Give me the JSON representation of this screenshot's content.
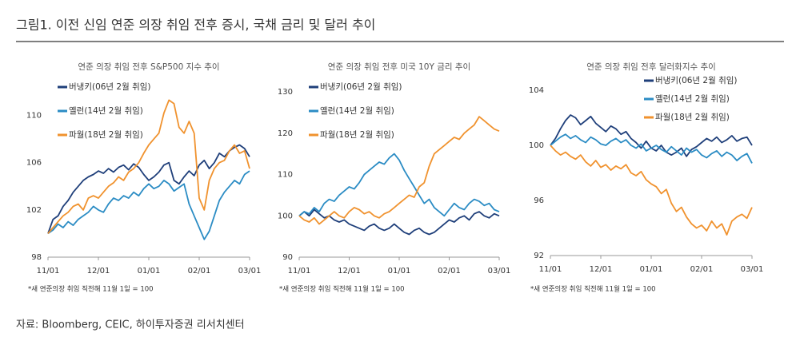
{
  "title": "그림1. 이전 신임 연준 의장 취임 전후 증시, 국채 금리 및 달러 추이",
  "source": "자료: Bloomberg, CEIC, 하이투자증권 리서치센터",
  "chart_data": [
    {
      "type": "line",
      "title": "연준 의장 취임 전후 S&P500 지수 추이",
      "categories": [
        "11/01",
        null,
        null,
        null,
        null,
        null,
        null,
        null,
        null,
        null,
        "12/01",
        null,
        null,
        null,
        null,
        null,
        null,
        null,
        null,
        null,
        "01/01",
        null,
        null,
        null,
        null,
        null,
        null,
        null,
        null,
        null,
        "02/01",
        null,
        null,
        null,
        null,
        null,
        null,
        null,
        null,
        null,
        "03/01"
      ],
      "ylim": [
        98,
        112
      ],
      "yticks": [
        98,
        102,
        106,
        110
      ],
      "legend": "upper left",
      "note": "*새 연준의장 취임 직전해 11월 1일 = 100",
      "series": [
        {
          "name": "버냉키(06년 2월 취임)",
          "color": "#1f3f7a",
          "values": [
            100,
            101.2,
            101.5,
            102.3,
            102.8,
            103.5,
            104,
            104.5,
            104.8,
            105,
            105.3,
            105.1,
            105.5,
            105.2,
            105.6,
            105.8,
            105.4,
            105.9,
            105.6,
            105,
            104.5,
            104.8,
            105.2,
            105.8,
            106,
            104.5,
            104.2,
            104.8,
            105.3,
            104.9,
            105.8,
            106.2,
            105.5,
            106,
            106.8,
            106.5,
            107,
            107.3,
            107.5,
            107.2,
            106.5
          ]
        },
        {
          "name": "옐런(14년 2월 취임)",
          "color": "#2b8cc4",
          "values": [
            100,
            100.3,
            100.8,
            100.5,
            101,
            100.7,
            101.2,
            101.5,
            101.8,
            102.3,
            102,
            101.8,
            102.5,
            103,
            102.8,
            103.2,
            103,
            103.5,
            103.2,
            103.8,
            104.2,
            103.8,
            104,
            104.5,
            104.2,
            103.6,
            103.9,
            104.2,
            102.5,
            101.5,
            100.5,
            99.5,
            100.2,
            101.5,
            102.8,
            103.5,
            104,
            104.5,
            104.2,
            105,
            105.3
          ]
        },
        {
          "name": "파월(18년 2월 취임)",
          "color": "#f0922e",
          "values": [
            100,
            100.5,
            101,
            101.5,
            101.8,
            102.3,
            102.5,
            102,
            103,
            103.2,
            103,
            103.5,
            104,
            104.3,
            104.8,
            104.5,
            105.2,
            105.5,
            106,
            106.8,
            107.5,
            108,
            108.5,
            110.2,
            111.3,
            111,
            109,
            108.5,
            109.5,
            108.5,
            103,
            102,
            104.5,
            105.5,
            106,
            106.2,
            107,
            107.5,
            106.8,
            107,
            105.5
          ]
        }
      ]
    },
    {
      "type": "line",
      "title": "연준 의장 취임 전후 미국 10Y 금리 추이",
      "categories": [
        "11/01",
        null,
        null,
        null,
        null,
        null,
        null,
        null,
        null,
        null,
        "12/01",
        null,
        null,
        null,
        null,
        null,
        null,
        null,
        null,
        null,
        "01/01",
        null,
        null,
        null,
        null,
        null,
        null,
        null,
        null,
        null,
        "02/01",
        null,
        null,
        null,
        null,
        null,
        null,
        null,
        null,
        null,
        "03/01"
      ],
      "ylim": [
        90,
        130
      ],
      "yticks": [
        90,
        100,
        110,
        120,
        130
      ],
      "legend": "upper left",
      "note": "*새 연준의장 취임 직전해 11월 1일 = 100",
      "series": [
        {
          "name": "버냉키(06년 2월 취임)",
          "color": "#1f3f7a",
          "values": [
            100,
            101,
            100,
            101.5,
            100.5,
            99.5,
            100,
            99,
            98.5,
            99,
            98,
            97.5,
            97,
            96.5,
            97.5,
            98,
            97,
            96.5,
            97,
            98,
            97,
            96,
            95.5,
            96.5,
            97,
            96,
            95.5,
            96,
            97,
            98,
            99,
            98.5,
            99.5,
            100,
            99,
            100.5,
            101,
            100,
            99.5,
            100.5,
            100
          ]
        },
        {
          "name": "옐런(14년 2월 취임)",
          "color": "#2b8cc4",
          "values": [
            100,
            101,
            100.5,
            102,
            101,
            103,
            104,
            103.5,
            105,
            106,
            107,
            106.5,
            108,
            110,
            111,
            112,
            113,
            112.5,
            114,
            115,
            113.5,
            111,
            109,
            107,
            105,
            103,
            104,
            102,
            101,
            100,
            101.5,
            103,
            102,
            101.5,
            103,
            104,
            103.5,
            102.5,
            103,
            101.5,
            101
          ]
        },
        {
          "name": "파월(18년 2월 취임)",
          "color": "#f0922e",
          "values": [
            100,
            99,
            98.5,
            99.5,
            98,
            99,
            100,
            101,
            100,
            99.5,
            101,
            102,
            101.5,
            100.5,
            101,
            100,
            99.5,
            100.5,
            101,
            102,
            103,
            104,
            105,
            104.5,
            107,
            108,
            112,
            115,
            116,
            117,
            118,
            119,
            118.5,
            120,
            121,
            122,
            124,
            123,
            122,
            121,
            120.5
          ]
        }
      ]
    },
    {
      "type": "line",
      "title": "연준 의장 취임 전후 달러화지수 추이",
      "categories": [
        "11/01",
        null,
        null,
        null,
        null,
        null,
        null,
        null,
        null,
        null,
        "12/01",
        null,
        null,
        null,
        null,
        null,
        null,
        null,
        null,
        null,
        "01/01",
        null,
        null,
        null,
        null,
        null,
        null,
        null,
        null,
        null,
        "02/01",
        null,
        null,
        null,
        null,
        null,
        null,
        null,
        null,
        null,
        "03/01"
      ],
      "ylim": [
        92,
        104
      ],
      "yticks": [
        92,
        96,
        100,
        104
      ],
      "legend": "upper right",
      "note": "*새 연준의장 취임 직전해 11월 1일 = 100",
      "series": [
        {
          "name": "버냉키(06년 2월 취임)",
          "color": "#1f3f7a",
          "values": [
            100,
            100.5,
            101.2,
            101.8,
            102.2,
            102,
            101.5,
            101.8,
            102.1,
            101.6,
            101.3,
            101,
            101.4,
            101.2,
            100.8,
            101,
            100.5,
            100.2,
            99.8,
            100.3,
            99.8,
            99.6,
            100,
            99.5,
            99.3,
            99.5,
            99.8,
            99.2,
            99.7,
            99.9,
            100.2,
            100.5,
            100.3,
            100.6,
            100.2,
            100.4,
            100.7,
            100.3,
            100.5,
            100.6,
            100
          ]
        },
        {
          "name": "옐런(14년 2월 취임)",
          "color": "#2b8cc4",
          "values": [
            100,
            100.3,
            100.6,
            100.8,
            100.5,
            100.7,
            100.4,
            100.2,
            100.6,
            100.4,
            100.1,
            100,
            100.3,
            100.5,
            100.2,
            100.4,
            100,
            99.8,
            100.1,
            99.6,
            99.8,
            100,
            99.7,
            99.5,
            99.9,
            99.6,
            99.3,
            99.8,
            99.5,
            99.7,
            99.3,
            99.1,
            99.4,
            99.6,
            99.2,
            99.5,
            99.3,
            98.9,
            99.2,
            99.4,
            98.7
          ]
        },
        {
          "name": "파월(18년 2월 취임)",
          "color": "#f0922e",
          "values": [
            100,
            99.6,
            99.3,
            99.5,
            99.2,
            99,
            99.3,
            98.8,
            98.5,
            98.9,
            98.4,
            98.6,
            98.2,
            98.5,
            98.3,
            98.6,
            98,
            97.8,
            98.1,
            97.5,
            97.2,
            97,
            96.5,
            96.8,
            95.8,
            95.2,
            95.5,
            94.8,
            94.3,
            94,
            94.2,
            93.8,
            94.5,
            94,
            94.3,
            93.5,
            94.5,
            94.8,
            95,
            94.7,
            95.5
          ]
        }
      ]
    }
  ]
}
